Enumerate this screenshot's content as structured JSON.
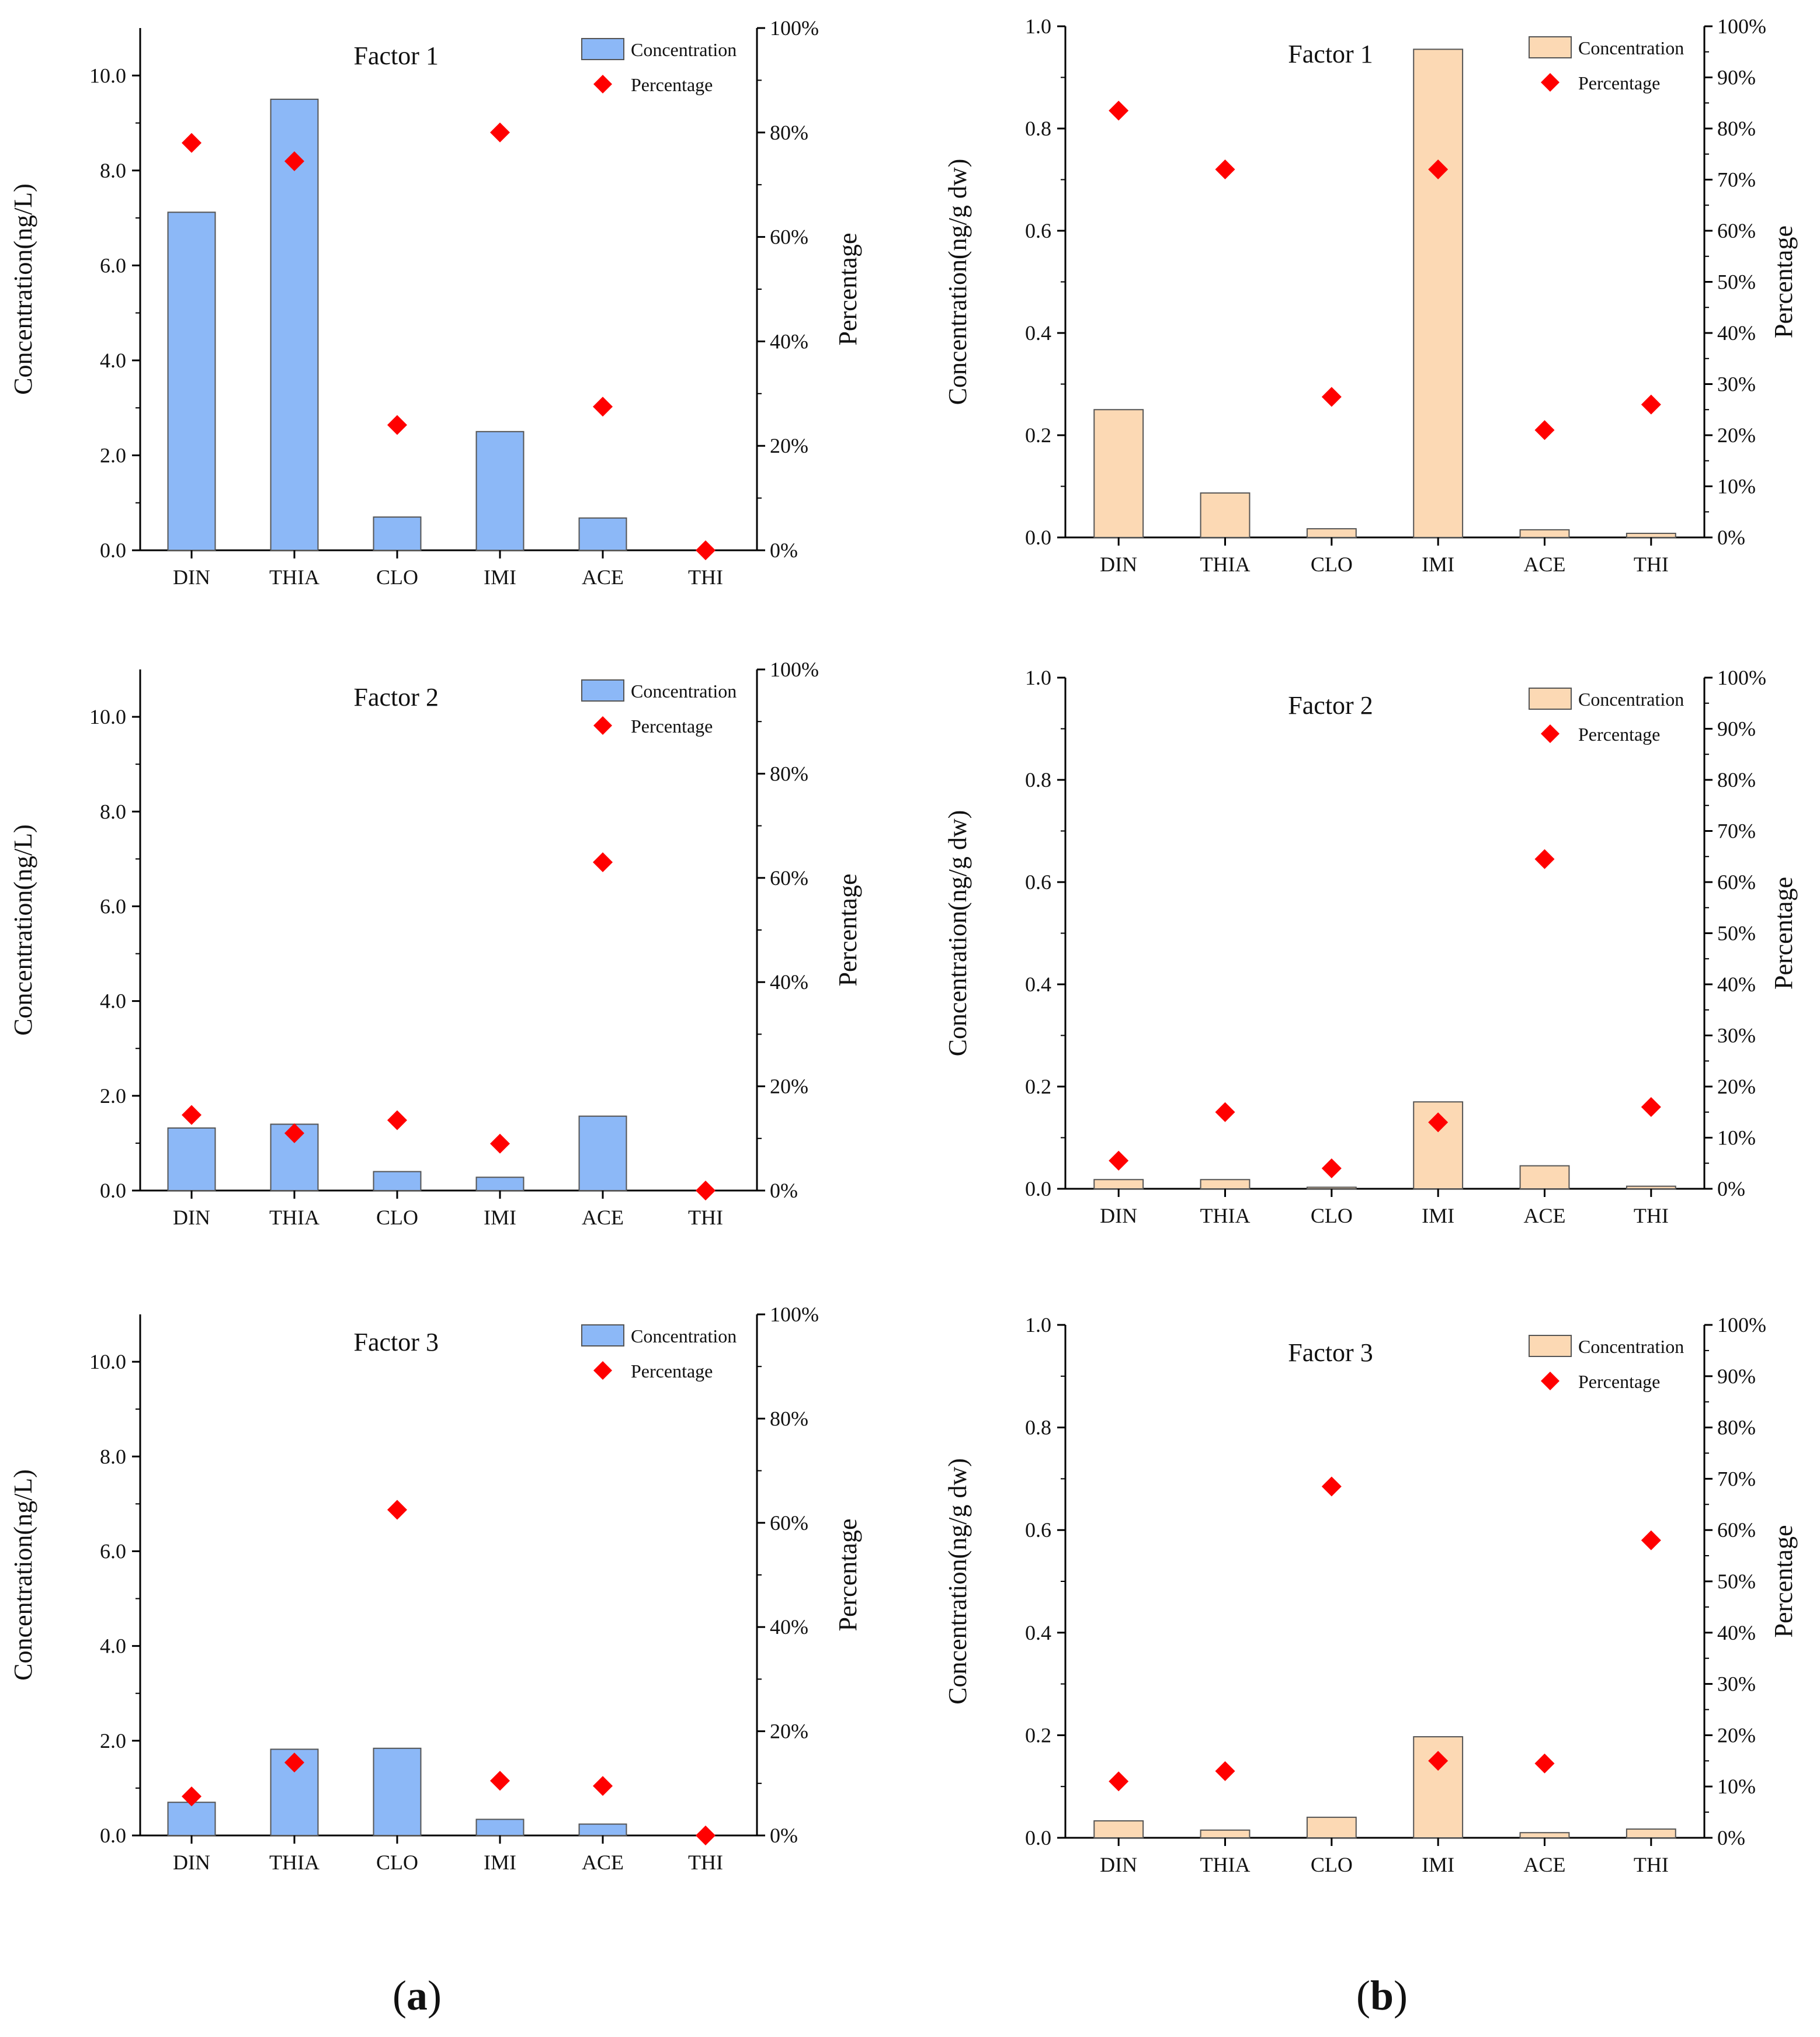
{
  "colors": {
    "bar_a": "#8cb8f7",
    "bar_b": "#fcd9b4",
    "bar_stroke": "#555555",
    "marker": "#ff0000",
    "axis": "#000000"
  },
  "panel_labels": [
    {
      "open": "(",
      "letter": "a",
      "close": ")"
    },
    {
      "open": "(",
      "letter": "b",
      "close": ")"
    }
  ],
  "chart_data": [
    {
      "type": "bar",
      "panel": "a",
      "title": "Factor 1",
      "categories": [
        "DIN",
        "THIA",
        "CLO",
        "IMI",
        "ACE",
        "THI"
      ],
      "series": [
        {
          "name": "Concentration",
          "kind": "bar",
          "axis": "left",
          "values": [
            7.12,
            9.5,
            0.7,
            2.5,
            0.68,
            0.0
          ]
        },
        {
          "name": "Percentage",
          "kind": "scatter",
          "axis": "right",
          "values": [
            78,
            74.5,
            24,
            80,
            27.5,
            0
          ]
        }
      ],
      "ylabel": "Concentration(ng/L)",
      "y2label": "Percentage",
      "ylim": [
        0,
        11
      ],
      "y2lim": [
        0,
        100
      ],
      "yticks": [
        "0.0",
        "2.0",
        "4.0",
        "6.0",
        "8.0",
        "10.0"
      ],
      "y2ticks": [
        "0%",
        "20%",
        "40%",
        "60%",
        "80%",
        "100%"
      ],
      "legend_position": "top-right"
    },
    {
      "type": "bar",
      "panel": "b",
      "title": "Factor 1",
      "categories": [
        "DIN",
        "THIA",
        "CLO",
        "IMI",
        "ACE",
        "THI"
      ],
      "series": [
        {
          "name": "Concentration",
          "kind": "bar",
          "axis": "left",
          "values": [
            0.25,
            0.087,
            0.017,
            0.955,
            0.015,
            0.008
          ]
        },
        {
          "name": "Percentage",
          "kind": "scatter",
          "axis": "right",
          "values": [
            83.5,
            72,
            27.5,
            72,
            21,
            26
          ]
        }
      ],
      "ylabel": "Concentration(ng/g dw)",
      "y2label": "Percentage",
      "ylim": [
        0,
        1
      ],
      "y2lim": [
        0,
        100
      ],
      "yticks": [
        "0.0",
        "0.2",
        "0.4",
        "0.6",
        "0.8",
        "1.0"
      ],
      "y2ticks": [
        "0%",
        "10%",
        "20%",
        "30%",
        "40%",
        "50%",
        "60%",
        "70%",
        "80%",
        "90%",
        "100%"
      ],
      "legend_position": "top-right"
    },
    {
      "type": "bar",
      "panel": "a",
      "title": "Factor 2",
      "categories": [
        "DIN",
        "THIA",
        "CLO",
        "IMI",
        "ACE",
        "THI"
      ],
      "series": [
        {
          "name": "Concentration",
          "kind": "bar",
          "axis": "left",
          "values": [
            1.32,
            1.4,
            0.4,
            0.28,
            1.57,
            0.0
          ]
        },
        {
          "name": "Percentage",
          "kind": "scatter",
          "axis": "right",
          "values": [
            14.5,
            11,
            13.5,
            9,
            63,
            0
          ]
        }
      ],
      "ylabel": "Concentration(ng/L)",
      "y2label": "Percentage",
      "ylim": [
        0,
        11
      ],
      "y2lim": [
        0,
        100
      ],
      "yticks": [
        "0.0",
        "2.0",
        "4.0",
        "6.0",
        "8.0",
        "10.0"
      ],
      "y2ticks": [
        "0%",
        "20%",
        "40%",
        "60%",
        "80%",
        "100%"
      ],
      "legend_position": "top-right"
    },
    {
      "type": "bar",
      "panel": "b",
      "title": "Factor 2",
      "categories": [
        "DIN",
        "THIA",
        "CLO",
        "IMI",
        "ACE",
        "THI"
      ],
      "series": [
        {
          "name": "Concentration",
          "kind": "bar",
          "axis": "left",
          "values": [
            0.018,
            0.018,
            0.003,
            0.17,
            0.045,
            0.005
          ]
        },
        {
          "name": "Percentage",
          "kind": "scatter",
          "axis": "right",
          "values": [
            5.5,
            15,
            4,
            13,
            64.5,
            16
          ]
        }
      ],
      "ylabel": "Concentration(ng/g dw)",
      "y2label": "Percentage",
      "ylim": [
        0,
        1
      ],
      "y2lim": [
        0,
        100
      ],
      "yticks": [
        "0.0",
        "0.2",
        "0.4",
        "0.6",
        "0.8",
        "1.0"
      ],
      "y2ticks": [
        "0%",
        "10%",
        "20%",
        "30%",
        "40%",
        "50%",
        "60%",
        "70%",
        "80%",
        "90%",
        "100%"
      ],
      "legend_position": "top-right"
    },
    {
      "type": "bar",
      "panel": "a",
      "title": "Factor 3",
      "categories": [
        "DIN",
        "THIA",
        "CLO",
        "IMI",
        "ACE",
        "THI"
      ],
      "series": [
        {
          "name": "Concentration",
          "kind": "bar",
          "axis": "left",
          "values": [
            0.7,
            1.82,
            1.84,
            0.34,
            0.24,
            0.0
          ]
        },
        {
          "name": "Percentage",
          "kind": "scatter",
          "axis": "right",
          "values": [
            7.5,
            14,
            62.5,
            10.5,
            9.5,
            0
          ]
        }
      ],
      "ylabel": "Concentration(ng/L)",
      "y2label": "Percentage",
      "ylim": [
        0,
        11
      ],
      "y2lim": [
        0,
        100
      ],
      "yticks": [
        "0.0",
        "2.0",
        "4.0",
        "6.0",
        "8.0",
        "10.0"
      ],
      "y2ticks": [
        "0%",
        "20%",
        "40%",
        "60%",
        "80%",
        "100%"
      ],
      "legend_position": "top-right"
    },
    {
      "type": "bar",
      "panel": "b",
      "title": "Factor 3",
      "categories": [
        "DIN",
        "THIA",
        "CLO",
        "IMI",
        "ACE",
        "THI"
      ],
      "series": [
        {
          "name": "Concentration",
          "kind": "bar",
          "axis": "left",
          "values": [
            0.033,
            0.015,
            0.04,
            0.197,
            0.01,
            0.017
          ]
        },
        {
          "name": "Percentage",
          "kind": "scatter",
          "axis": "right",
          "values": [
            11,
            13,
            68.5,
            15,
            14.5,
            58
          ]
        }
      ],
      "ylabel": "Concentration(ng/g dw)",
      "y2label": "Percentage",
      "ylim": [
        0,
        1
      ],
      "y2lim": [
        0,
        100
      ],
      "yticks": [
        "0.0",
        "0.2",
        "0.4",
        "0.6",
        "0.8",
        "1.0"
      ],
      "y2ticks": [
        "0%",
        "10%",
        "20%",
        "30%",
        "40%",
        "50%",
        "60%",
        "70%",
        "80%",
        "90%",
        "100%"
      ],
      "legend_position": "top-right"
    }
  ]
}
